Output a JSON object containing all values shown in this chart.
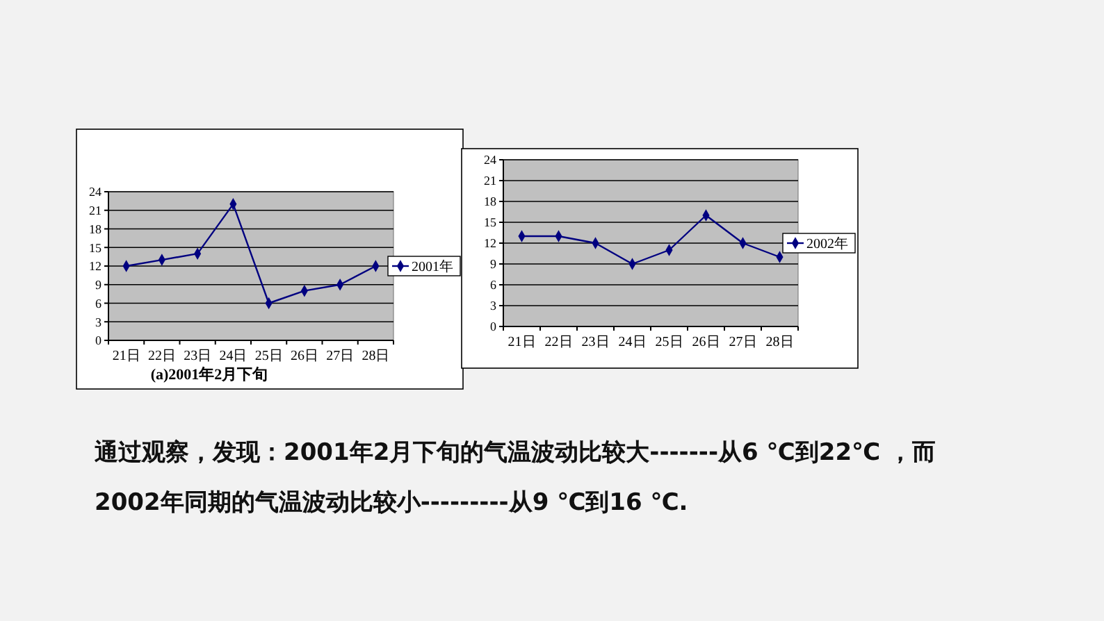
{
  "chart_data": [
    {
      "type": "line",
      "xlabel": "(a)2001年2月下旬",
      "categories": [
        "21日",
        "22日",
        "23日",
        "24日",
        "25日",
        "26日",
        "27日",
        "28日"
      ],
      "series": [
        {
          "name": "2001年",
          "color": "#000080",
          "values": [
            12,
            13,
            14,
            22,
            6,
            8,
            9,
            12
          ]
        }
      ],
      "ylim": [
        0,
        24
      ],
      "yticks": [
        0,
        3,
        6,
        9,
        12,
        15,
        18,
        21,
        24
      ],
      "grid": "y",
      "legend": "right",
      "marker": "diamond"
    },
    {
      "type": "line",
      "categories": [
        "21日",
        "22日",
        "23日",
        "24日",
        "25日",
        "26日",
        "27日",
        "28日"
      ],
      "series": [
        {
          "name": "2002年",
          "color": "#000080",
          "values": [
            13,
            13,
            12,
            9,
            11,
            16,
            12,
            10
          ]
        }
      ],
      "ylim": [
        0,
        24
      ],
      "yticks": [
        0,
        3,
        6,
        9,
        12,
        15,
        18,
        21,
        24
      ],
      "grid": "y",
      "legend": "right",
      "marker": "diamond"
    },
    {
      "type": "other",
      "annotations": [
        "通过观察，发现：2001年2月下旬的气温波动比较大-------从6 ℃到22℃ ，而",
        "2002年同期的气温波动比较小---------从9 ℃到16 ℃."
      ]
    }
  ]
}
